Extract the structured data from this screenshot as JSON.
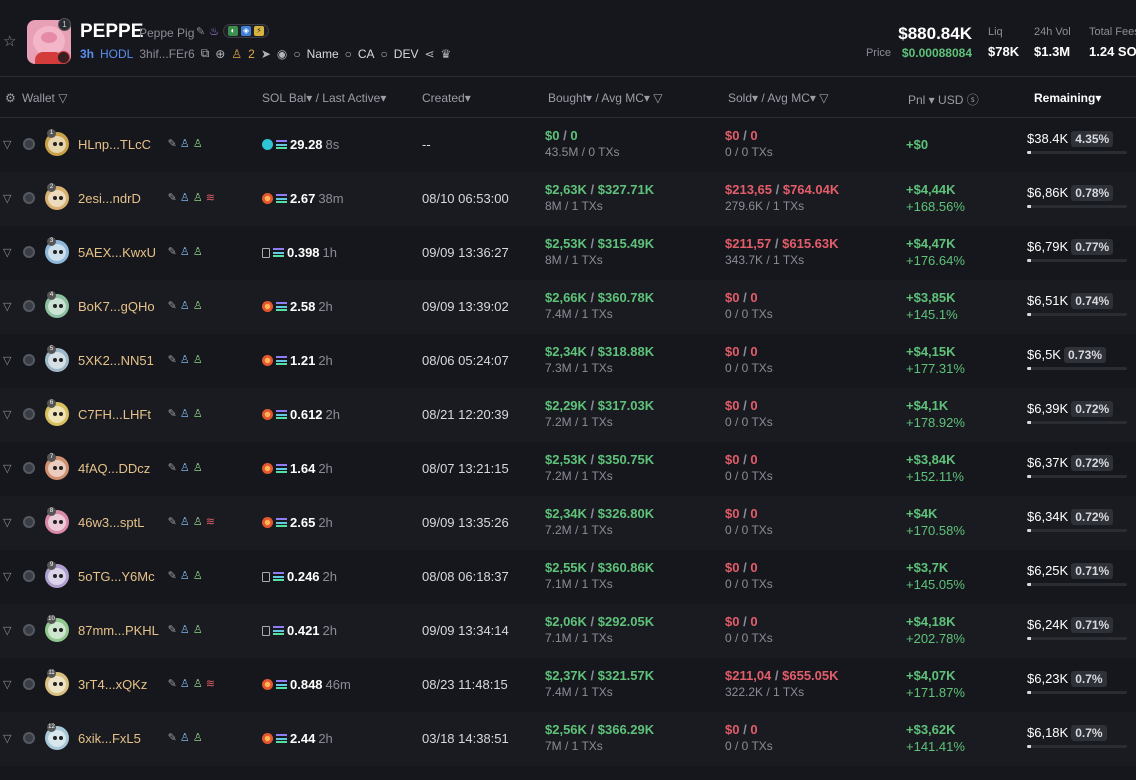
{
  "token": {
    "ticker": "PEPPE",
    "name": "Peppe Pig",
    "badge": "1",
    "age": "3h",
    "hodl": "HODL",
    "address": "3hif...FEr6",
    "holders": "2",
    "links": {
      "name": "Name",
      "ca": "CA",
      "dev": "DEV"
    }
  },
  "stats": {
    "market_cap": "$880.84K",
    "price_label": "Price",
    "price": "$0.00088084",
    "liq_label": "Liq",
    "liq": "$78K",
    "vol_label": "24h Vol",
    "vol": "$1.3M",
    "fees_label": "Total Fees",
    "fees": "1.24 SOL"
  },
  "columns": {
    "wallet": "Wallet",
    "sol_bal": "SOL Bal",
    "last_active": "/ Last Active",
    "created": "Created",
    "bought": "Bought",
    "avg_mc_bought": "/ Avg MC",
    "sold": "Sold",
    "avg_mc_sold": "/ Avg MC",
    "pnl": "Pnl",
    "usd": "USD",
    "remaining": "Remaining"
  },
  "rows": [
    {
      "rank": "1",
      "wallet": "HLnp...TLcC",
      "avatar_color": "#c9a24a",
      "source": "swap",
      "sol": "29.28",
      "ago": "8s",
      "created": "--",
      "bought": "$0",
      "bought_mc": "0",
      "bought_sub": "43.5M / 0 TXs",
      "sold": "$0",
      "sold_mc": "0",
      "sold_sub": "0 / 0 TXs",
      "pnl": "+$0",
      "pnl_pct": "",
      "remaining": "$38.4K",
      "remaining_pct": "4.35%",
      "remaining_fill": 0.0435,
      "extra_icon": false
    },
    {
      "rank": "2",
      "wallet": "2esi...ndrD",
      "avatar_color": "#d8b070",
      "source": "fire",
      "sol": "2.67",
      "ago": "38m",
      "created": "08/10 06:53:00",
      "bought": "$2,63K",
      "bought_mc": "$327.71K",
      "bought_sub": "8M / 1 TXs",
      "sold": "$213,65",
      "sold_mc": "$764.04K",
      "sold_sub": "279.6K / 1 TXs",
      "pnl": "+$4,44K",
      "pnl_pct": "+168.56%",
      "remaining": "$6,86K",
      "remaining_pct": "0.78%",
      "remaining_fill": 0.0078,
      "extra_icon": true
    },
    {
      "rank": "3",
      "wallet": "5AEX...KwxU",
      "avatar_color": "#8fb8d8",
      "source": "box",
      "sol": "0.398",
      "ago": "1h",
      "created": "09/09 13:36:27",
      "bought": "$2,53K",
      "bought_mc": "$315.49K",
      "bought_sub": "8M / 1 TXs",
      "sold": "$211,57",
      "sold_mc": "$615.63K",
      "sold_sub": "343.7K / 1 TXs",
      "pnl": "+$4,47K",
      "pnl_pct": "+176.64%",
      "remaining": "$6,79K",
      "remaining_pct": "0.77%",
      "remaining_fill": 0.0077,
      "extra_icon": false
    },
    {
      "rank": "4",
      "wallet": "BoK7...gQHo",
      "avatar_color": "#8cc0a0",
      "source": "fire",
      "sol": "2.58",
      "ago": "2h",
      "created": "09/09 13:39:02",
      "bought": "$2,66K",
      "bought_mc": "$360.78K",
      "bought_sub": "7.4M / 1 TXs",
      "sold": "$0",
      "sold_mc": "0",
      "sold_sub": "0 / 0 TXs",
      "pnl": "+$3,85K",
      "pnl_pct": "+145.1%",
      "remaining": "$6,51K",
      "remaining_pct": "0.74%",
      "remaining_fill": 0.0074,
      "extra_icon": false
    },
    {
      "rank": "5",
      "wallet": "5XK2...NN51",
      "avatar_color": "#9fb8c8",
      "source": "fire",
      "sol": "1.21",
      "ago": "2h",
      "created": "08/06 05:24:07",
      "bought": "$2,34K",
      "bought_mc": "$318.88K",
      "bought_sub": "7.3M / 1 TXs",
      "sold": "$0",
      "sold_mc": "0",
      "sold_sub": "0 / 0 TXs",
      "pnl": "+$4,15K",
      "pnl_pct": "+177.31%",
      "remaining": "$6,5K",
      "remaining_pct": "0.73%",
      "remaining_fill": 0.0073,
      "extra_icon": false
    },
    {
      "rank": "6",
      "wallet": "C7FH...LHFt",
      "avatar_color": "#d8c060",
      "source": "fire",
      "sol": "0.612",
      "ago": "2h",
      "created": "08/21 12:20:39",
      "bought": "$2,29K",
      "bought_mc": "$317.03K",
      "bought_sub": "7.2M / 1 TXs",
      "sold": "$0",
      "sold_mc": "0",
      "sold_sub": "0 / 0 TXs",
      "pnl": "+$4,1K",
      "pnl_pct": "+178.92%",
      "remaining": "$6,39K",
      "remaining_pct": "0.72%",
      "remaining_fill": 0.0072,
      "extra_icon": false
    },
    {
      "rank": "7",
      "wallet": "4fAQ...DDcz",
      "avatar_color": "#d09070",
      "source": "fire",
      "sol": "1.64",
      "ago": "2h",
      "created": "08/07 13:21:15",
      "bought": "$2,53K",
      "bought_mc": "$350.75K",
      "bought_sub": "7.2M / 1 TXs",
      "sold": "$0",
      "sold_mc": "0",
      "sold_sub": "0 / 0 TXs",
      "pnl": "+$3,84K",
      "pnl_pct": "+152.11%",
      "remaining": "$6,37K",
      "remaining_pct": "0.72%",
      "remaining_fill": 0.0072,
      "extra_icon": false
    },
    {
      "rank": "8",
      "wallet": "46w3...sptL",
      "avatar_color": "#d88aa8",
      "source": "fire",
      "sol": "2.65",
      "ago": "2h",
      "created": "09/09 13:35:26",
      "bought": "$2,34K",
      "bought_mc": "$326.80K",
      "bought_sub": "7.2M / 1 TXs",
      "sold": "$0",
      "sold_mc": "0",
      "sold_sub": "0 / 0 TXs",
      "pnl": "+$4K",
      "pnl_pct": "+170.58%",
      "remaining": "$6,34K",
      "remaining_pct": "0.72%",
      "remaining_fill": 0.0072,
      "extra_icon": true
    },
    {
      "rank": "9",
      "wallet": "5oTG...Y6Mc",
      "avatar_color": "#b0a0d0",
      "source": "box",
      "sol": "0.246",
      "ago": "2h",
      "created": "08/08 06:18:37",
      "bought": "$2,55K",
      "bought_mc": "$360.86K",
      "bought_sub": "7.1M / 1 TXs",
      "sold": "$0",
      "sold_mc": "0",
      "sold_sub": "0 / 0 TXs",
      "pnl": "+$3,7K",
      "pnl_pct": "+145.05%",
      "remaining": "$6,25K",
      "remaining_pct": "0.71%",
      "remaining_fill": 0.0071,
      "extra_icon": false
    },
    {
      "rank": "10",
      "wallet": "87mm...PKHL",
      "avatar_color": "#90c890",
      "source": "box",
      "sol": "0.421",
      "ago": "2h",
      "created": "09/09 13:34:14",
      "bought": "$2,06K",
      "bought_mc": "$292.05K",
      "bought_sub": "7.1M / 1 TXs",
      "sold": "$0",
      "sold_mc": "0",
      "sold_sub": "0 / 0 TXs",
      "pnl": "+$4,18K",
      "pnl_pct": "+202.78%",
      "remaining": "$6,24K",
      "remaining_pct": "0.71%",
      "remaining_fill": 0.0071,
      "extra_icon": false
    },
    {
      "rank": "11",
      "wallet": "3rT4...xQKz",
      "avatar_color": "#d8c080",
      "source": "fire",
      "sol": "0.848",
      "ago": "46m",
      "created": "08/23 11:48:15",
      "bought": "$2,37K",
      "bought_mc": "$321.57K",
      "bought_sub": "7.4M / 1 TXs",
      "sold": "$211,04",
      "sold_mc": "$655.05K",
      "sold_sub": "322.2K / 1 TXs",
      "pnl": "+$4,07K",
      "pnl_pct": "+171.87%",
      "remaining": "$6,23K",
      "remaining_pct": "0.7%",
      "remaining_fill": 0.007,
      "extra_icon": true
    },
    {
      "rank": "12",
      "wallet": "6xik...FxL5",
      "avatar_color": "#a8c8d8",
      "source": "fire",
      "sol": "2.44",
      "ago": "2h",
      "created": "03/18 14:38:51",
      "bought": "$2,56K",
      "bought_mc": "$366.29K",
      "bought_sub": "7M / 1 TXs",
      "sold": "$0",
      "sold_mc": "0",
      "sold_sub": "0 / 0 TXs",
      "pnl": "+$3,62K",
      "pnl_pct": "+141.41%",
      "remaining": "$6,18K",
      "remaining_pct": "0.7%",
      "remaining_fill": 0.007,
      "extra_icon": false
    }
  ]
}
